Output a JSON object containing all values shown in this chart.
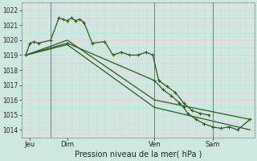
{
  "background_color": "#cde8e0",
  "grid_color": "#e8d0d8",
  "line_color": "#2d5a1b",
  "xlabel": "Pression niveau de la mer( hPa )",
  "ylim": [
    1013.5,
    1022.5
  ],
  "yticks": [
    1014,
    1015,
    1016,
    1017,
    1018,
    1019,
    1020,
    1021,
    1022
  ],
  "xlim": [
    0,
    28
  ],
  "day_positions": [
    1,
    5.5,
    16,
    23
  ],
  "day_labels": [
    "Jeu",
    "Dim",
    "Ven",
    "Sam"
  ],
  "vline_positions": [
    3.5,
    16,
    23
  ],
  "line1_x": [
    0.5,
    1.0,
    1.5,
    2.0,
    3.5,
    4.5,
    5.0,
    5.5,
    6.0,
    6.5,
    7.0,
    7.5,
    8.5,
    10.0,
    11.0,
    12.0,
    13.0,
    14.0,
    15.0,
    15.8,
    16.5,
    17.5,
    18.5,
    19.5,
    20.5,
    21.5,
    22.5
  ],
  "line1_y": [
    1019.0,
    1019.8,
    1019.9,
    1019.8,
    1020.0,
    1021.5,
    1021.4,
    1021.3,
    1021.5,
    1021.3,
    1021.4,
    1021.2,
    1019.8,
    1019.9,
    1019.0,
    1019.2,
    1019.0,
    1019.0,
    1019.2,
    1019.0,
    1017.3,
    1016.9,
    1016.5,
    1015.8,
    1015.3,
    1015.1,
    1015.0
  ],
  "line2_x": [
    0.5,
    5.5,
    16.0,
    27.5
  ],
  "line2_y": [
    1019.0,
    1020.0,
    1016.0,
    1014.7
  ],
  "line3_x": [
    0.5,
    5.5,
    16.0,
    17.0,
    18.0,
    19.0,
    19.5,
    20.0,
    21.0,
    22.0,
    23.0,
    24.0,
    25.0,
    26.0,
    27.5
  ],
  "line3_y": [
    1019.0,
    1019.8,
    1017.3,
    1016.7,
    1016.3,
    1015.8,
    1015.5,
    1015.1,
    1014.7,
    1014.4,
    1014.2,
    1014.1,
    1014.2,
    1014.0,
    1014.7
  ],
  "line4_x": [
    0.5,
    5.5,
    16.0,
    27.5
  ],
  "line4_y": [
    1019.0,
    1019.7,
    1015.5,
    1014.0
  ]
}
